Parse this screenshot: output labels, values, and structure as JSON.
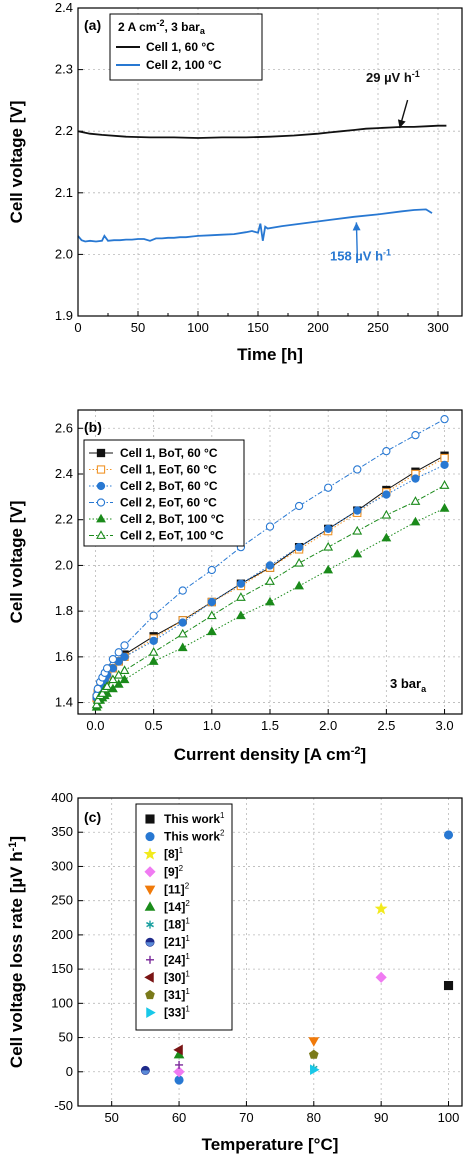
{
  "colors": {
    "black": "#111111",
    "blue": "#2878d2",
    "orange": "#f0952a",
    "green": "#1a8a1a",
    "yellow": "#f2ea1c",
    "magenta": "#f07bf2",
    "orange_tri": "#f07a0a",
    "green_tri": "#1b8c1b",
    "teal": "#1aa0a0",
    "navy": "#1e2a8a",
    "purple": "#7a2a9a",
    "darkred": "#7a1515",
    "olive": "#7a7a1a",
    "cyan": "#18c8e8"
  },
  "chart_data": [
    {
      "type": "line",
      "panel_label": "(a)",
      "xlabel": "Time [h]",
      "ylabel": "Cell voltage [V]",
      "xlim": [
        0,
        320
      ],
      "ylim": [
        1.9,
        2.4
      ],
      "xticks": [
        "0",
        "50",
        "100",
        "150",
        "200",
        "250",
        "300"
      ],
      "yticks": [
        "1.9",
        "2.0",
        "2.1",
        "2.2",
        "2.3",
        "2.4"
      ],
      "grid": true,
      "legend_title": {
        "main": "2 A cm",
        "sup1": "-2",
        "mid": ", 3 bar",
        "sub": "a"
      },
      "legend_placement": "top-left",
      "series": [
        {
          "name": "Cell 1, 60 °C",
          "color": "#111111",
          "x": [
            0,
            10,
            20,
            40,
            60,
            80,
            100,
            120,
            140,
            160,
            180,
            200,
            210,
            220,
            230,
            240,
            250,
            260,
            270,
            280,
            290,
            300,
            307
          ],
          "y": [
            2.2,
            2.196,
            2.194,
            2.191,
            2.19,
            2.19,
            2.189,
            2.19,
            2.19,
            2.191,
            2.193,
            2.196,
            2.198,
            2.2,
            2.202,
            2.204,
            2.205,
            2.206,
            2.207,
            2.207,
            2.208,
            2.209,
            2.209
          ]
        },
        {
          "name": "Cell 2, 100 °C",
          "color": "#2878d2",
          "x": [
            0,
            3,
            6,
            10,
            15,
            20,
            22,
            25,
            30,
            35,
            40,
            45,
            50,
            55,
            60,
            65,
            70,
            75,
            80,
            85,
            90,
            95,
            100,
            110,
            120,
            130,
            140,
            145,
            150,
            152,
            154,
            156,
            158,
            170,
            190,
            210,
            230,
            250,
            270,
            280,
            290,
            295
          ],
          "y": [
            2.03,
            2.023,
            2.021,
            2.022,
            2.021,
            2.022,
            2.03,
            2.022,
            2.023,
            2.023,
            2.024,
            2.024,
            2.025,
            2.025,
            2.022,
            2.026,
            2.026,
            2.027,
            2.027,
            2.028,
            2.028,
            2.029,
            2.03,
            2.031,
            2.032,
            2.033,
            2.036,
            2.038,
            2.035,
            2.05,
            2.022,
            2.045,
            2.042,
            2.046,
            2.051,
            2.056,
            2.061,
            2.065,
            2.07,
            2.072,
            2.073,
            2.067
          ]
        }
      ],
      "annotations": [
        {
          "text": "29 µV h",
          "sup": "-1",
          "x": 240,
          "y": 2.28,
          "color": "#111111",
          "arrow_to": [
            268,
            2.205
          ]
        },
        {
          "text": "158 µV h",
          "sup": "-1",
          "x": 210,
          "y": 1.99,
          "color": "#2878d2",
          "arrow_to": [
            232,
            2.052
          ]
        }
      ]
    },
    {
      "type": "line",
      "panel_label": "(b)",
      "xlabel": "Current density [A cm",
      "xlabel_sup": "-2",
      "xlabel_end": "]",
      "ylabel": "Cell voltage [V]",
      "xlim": [
        -0.15,
        3.15
      ],
      "ylim": [
        1.35,
        2.68
      ],
      "xticks": [
        0,
        0.5,
        1.0,
        1.5,
        2.0,
        2.5,
        3.0
      ],
      "xtick_labels": [
        "0.0",
        "0.5",
        "1.0",
        "1.5",
        "2.0",
        "2.5",
        "3.0"
      ],
      "yticks": [
        1.4,
        1.6,
        1.8,
        2.0,
        2.2,
        2.4,
        2.6
      ],
      "ytick_labels": [
        "1.4",
        "1.6",
        "1.8",
        "2.0",
        "2.2",
        "2.4",
        "2.6"
      ],
      "grid": true,
      "legend_placement": "top-left",
      "annotation": {
        "text": "3 bar",
        "sub": "a"
      },
      "x": [
        0.01,
        0.02,
        0.04,
        0.06,
        0.08,
        0.1,
        0.15,
        0.2,
        0.25,
        0.5,
        0.75,
        1.0,
        1.25,
        1.5,
        1.75,
        2.0,
        2.25,
        2.5,
        2.75,
        3.0
      ],
      "series": [
        {
          "name": "Cell 1, BoT, 60 °C",
          "color": "#111111",
          "marker": "square",
          "filled": true,
          "line": "solid",
          "y": [
            1.42,
            1.44,
            1.46,
            1.48,
            1.5,
            1.52,
            1.55,
            1.58,
            1.61,
            1.69,
            1.76,
            1.84,
            1.92,
            1.99,
            2.08,
            2.16,
            2.24,
            2.33,
            2.41,
            2.48
          ]
        },
        {
          "name": "Cell 1, EoT, 60 °C",
          "color": "#f0952a",
          "marker": "square",
          "filled": false,
          "line": "dotted",
          "y": [
            1.42,
            1.44,
            1.46,
            1.48,
            1.5,
            1.52,
            1.55,
            1.58,
            1.6,
            1.68,
            1.76,
            1.84,
            1.91,
            1.99,
            2.07,
            2.15,
            2.23,
            2.32,
            2.4,
            2.47
          ]
        },
        {
          "name": "Cell 2, BoT, 60 °C",
          "color": "#2878d2",
          "marker": "circle",
          "filled": true,
          "line": "dotted",
          "y": [
            1.42,
            1.44,
            1.46,
            1.48,
            1.5,
            1.52,
            1.55,
            1.58,
            1.6,
            1.67,
            1.75,
            1.84,
            1.92,
            2.0,
            2.08,
            2.16,
            2.24,
            2.31,
            2.38,
            2.44
          ]
        },
        {
          "name": "Cell 2, EoT, 60 °C",
          "color": "#2878d2",
          "marker": "circle",
          "filled": false,
          "line": "dashdot",
          "y": [
            1.43,
            1.46,
            1.49,
            1.51,
            1.53,
            1.55,
            1.59,
            1.62,
            1.65,
            1.78,
            1.89,
            1.98,
            2.08,
            2.17,
            2.26,
            2.34,
            2.42,
            2.5,
            2.57,
            2.64
          ]
        },
        {
          "name": "Cell 2, BoT, 100 °C",
          "color": "#1a8a1a",
          "marker": "triangle",
          "filled": true,
          "line": "dotted",
          "y": [
            1.38,
            1.39,
            1.41,
            1.42,
            1.43,
            1.44,
            1.46,
            1.48,
            1.5,
            1.58,
            1.64,
            1.71,
            1.78,
            1.84,
            1.91,
            1.98,
            2.05,
            2.12,
            2.19,
            2.25
          ]
        },
        {
          "name": "Cell 2, EoT, 100 °C",
          "color": "#1a8a1a",
          "marker": "triangle",
          "filled": false,
          "line": "dashdot",
          "y": [
            1.39,
            1.41,
            1.43,
            1.44,
            1.46,
            1.47,
            1.5,
            1.52,
            1.54,
            1.62,
            1.7,
            1.78,
            1.86,
            1.93,
            2.01,
            2.08,
            2.15,
            2.22,
            2.28,
            2.35
          ]
        }
      ]
    },
    {
      "type": "scatter",
      "panel_label": "(c)",
      "xlabel": "Temperature [°C]",
      "ylabel": "Cell voltage loss rate [µV h",
      "ylabel_sup": "-1",
      "ylabel_end": "]",
      "xlim": [
        45,
        102
      ],
      "ylim": [
        -50,
        400
      ],
      "xticks": [
        50,
        60,
        70,
        80,
        90,
        100
      ],
      "xtick_labels": [
        "50",
        "60",
        "70",
        "80",
        "90",
        "100"
      ],
      "yticks": [
        -50,
        0,
        50,
        100,
        150,
        200,
        250,
        300,
        350,
        400
      ],
      "ytick_labels": [
        "-50",
        "0",
        "50",
        "100",
        "150",
        "200",
        "250",
        "300",
        "350",
        "400"
      ],
      "grid": true,
      "legend_placement": "top-left",
      "series": [
        {
          "name": "This work",
          "sup": "1",
          "marker": "square",
          "color": "#111111",
          "points": [
            [
              100,
              126
            ]
          ]
        },
        {
          "name": "This work",
          "sup": "2",
          "marker": "circle",
          "color": "#2878d2",
          "points": [
            [
              100,
              346
            ],
            [
              60,
              -12
            ]
          ]
        },
        {
          "name": "[8]",
          "sup": "1",
          "marker": "star",
          "color": "#f2ea1c",
          "points": [
            [
              90,
              238
            ]
          ]
        },
        {
          "name": "[9]",
          "sup": "2",
          "marker": "diamond",
          "color": "#f07bf2",
          "points": [
            [
              90,
              138
            ],
            [
              60,
              0
            ]
          ]
        },
        {
          "name": "[11]",
          "sup": "2",
          "marker": "triangle-down",
          "color": "#f07a0a",
          "points": [
            [
              80,
              45
            ]
          ]
        },
        {
          "name": "[14]",
          "sup": "2",
          "marker": "triangle-up",
          "color": "#1b8c1b",
          "points": [
            [
              60,
              25
            ]
          ]
        },
        {
          "name": "[18]",
          "sup": "1",
          "marker": "asterisk",
          "color": "#1aa0a0",
          "points": [
            [
              80,
              5
            ]
          ]
        },
        {
          "name": "[21]",
          "sup": "1",
          "marker": "half-circle",
          "color": "#1e2a8a",
          "points": [
            [
              55,
              2
            ]
          ]
        },
        {
          "name": "[24]",
          "sup": "1",
          "marker": "plus",
          "color": "#7a2a9a",
          "points": [
            [
              60,
              10
            ]
          ]
        },
        {
          "name": "[30]",
          "sup": "1",
          "marker": "triangle-left",
          "color": "#7a1515",
          "points": [
            [
              60,
              32
            ]
          ]
        },
        {
          "name": "[31]",
          "sup": "1",
          "marker": "pentagon",
          "color": "#7a7a1a",
          "points": [
            [
              80,
              25
            ]
          ]
        },
        {
          "name": "[33]",
          "sup": "1",
          "marker": "triangle-right",
          "color": "#18c8e8",
          "points": [
            [
              80,
              3
            ]
          ]
        }
      ]
    }
  ]
}
